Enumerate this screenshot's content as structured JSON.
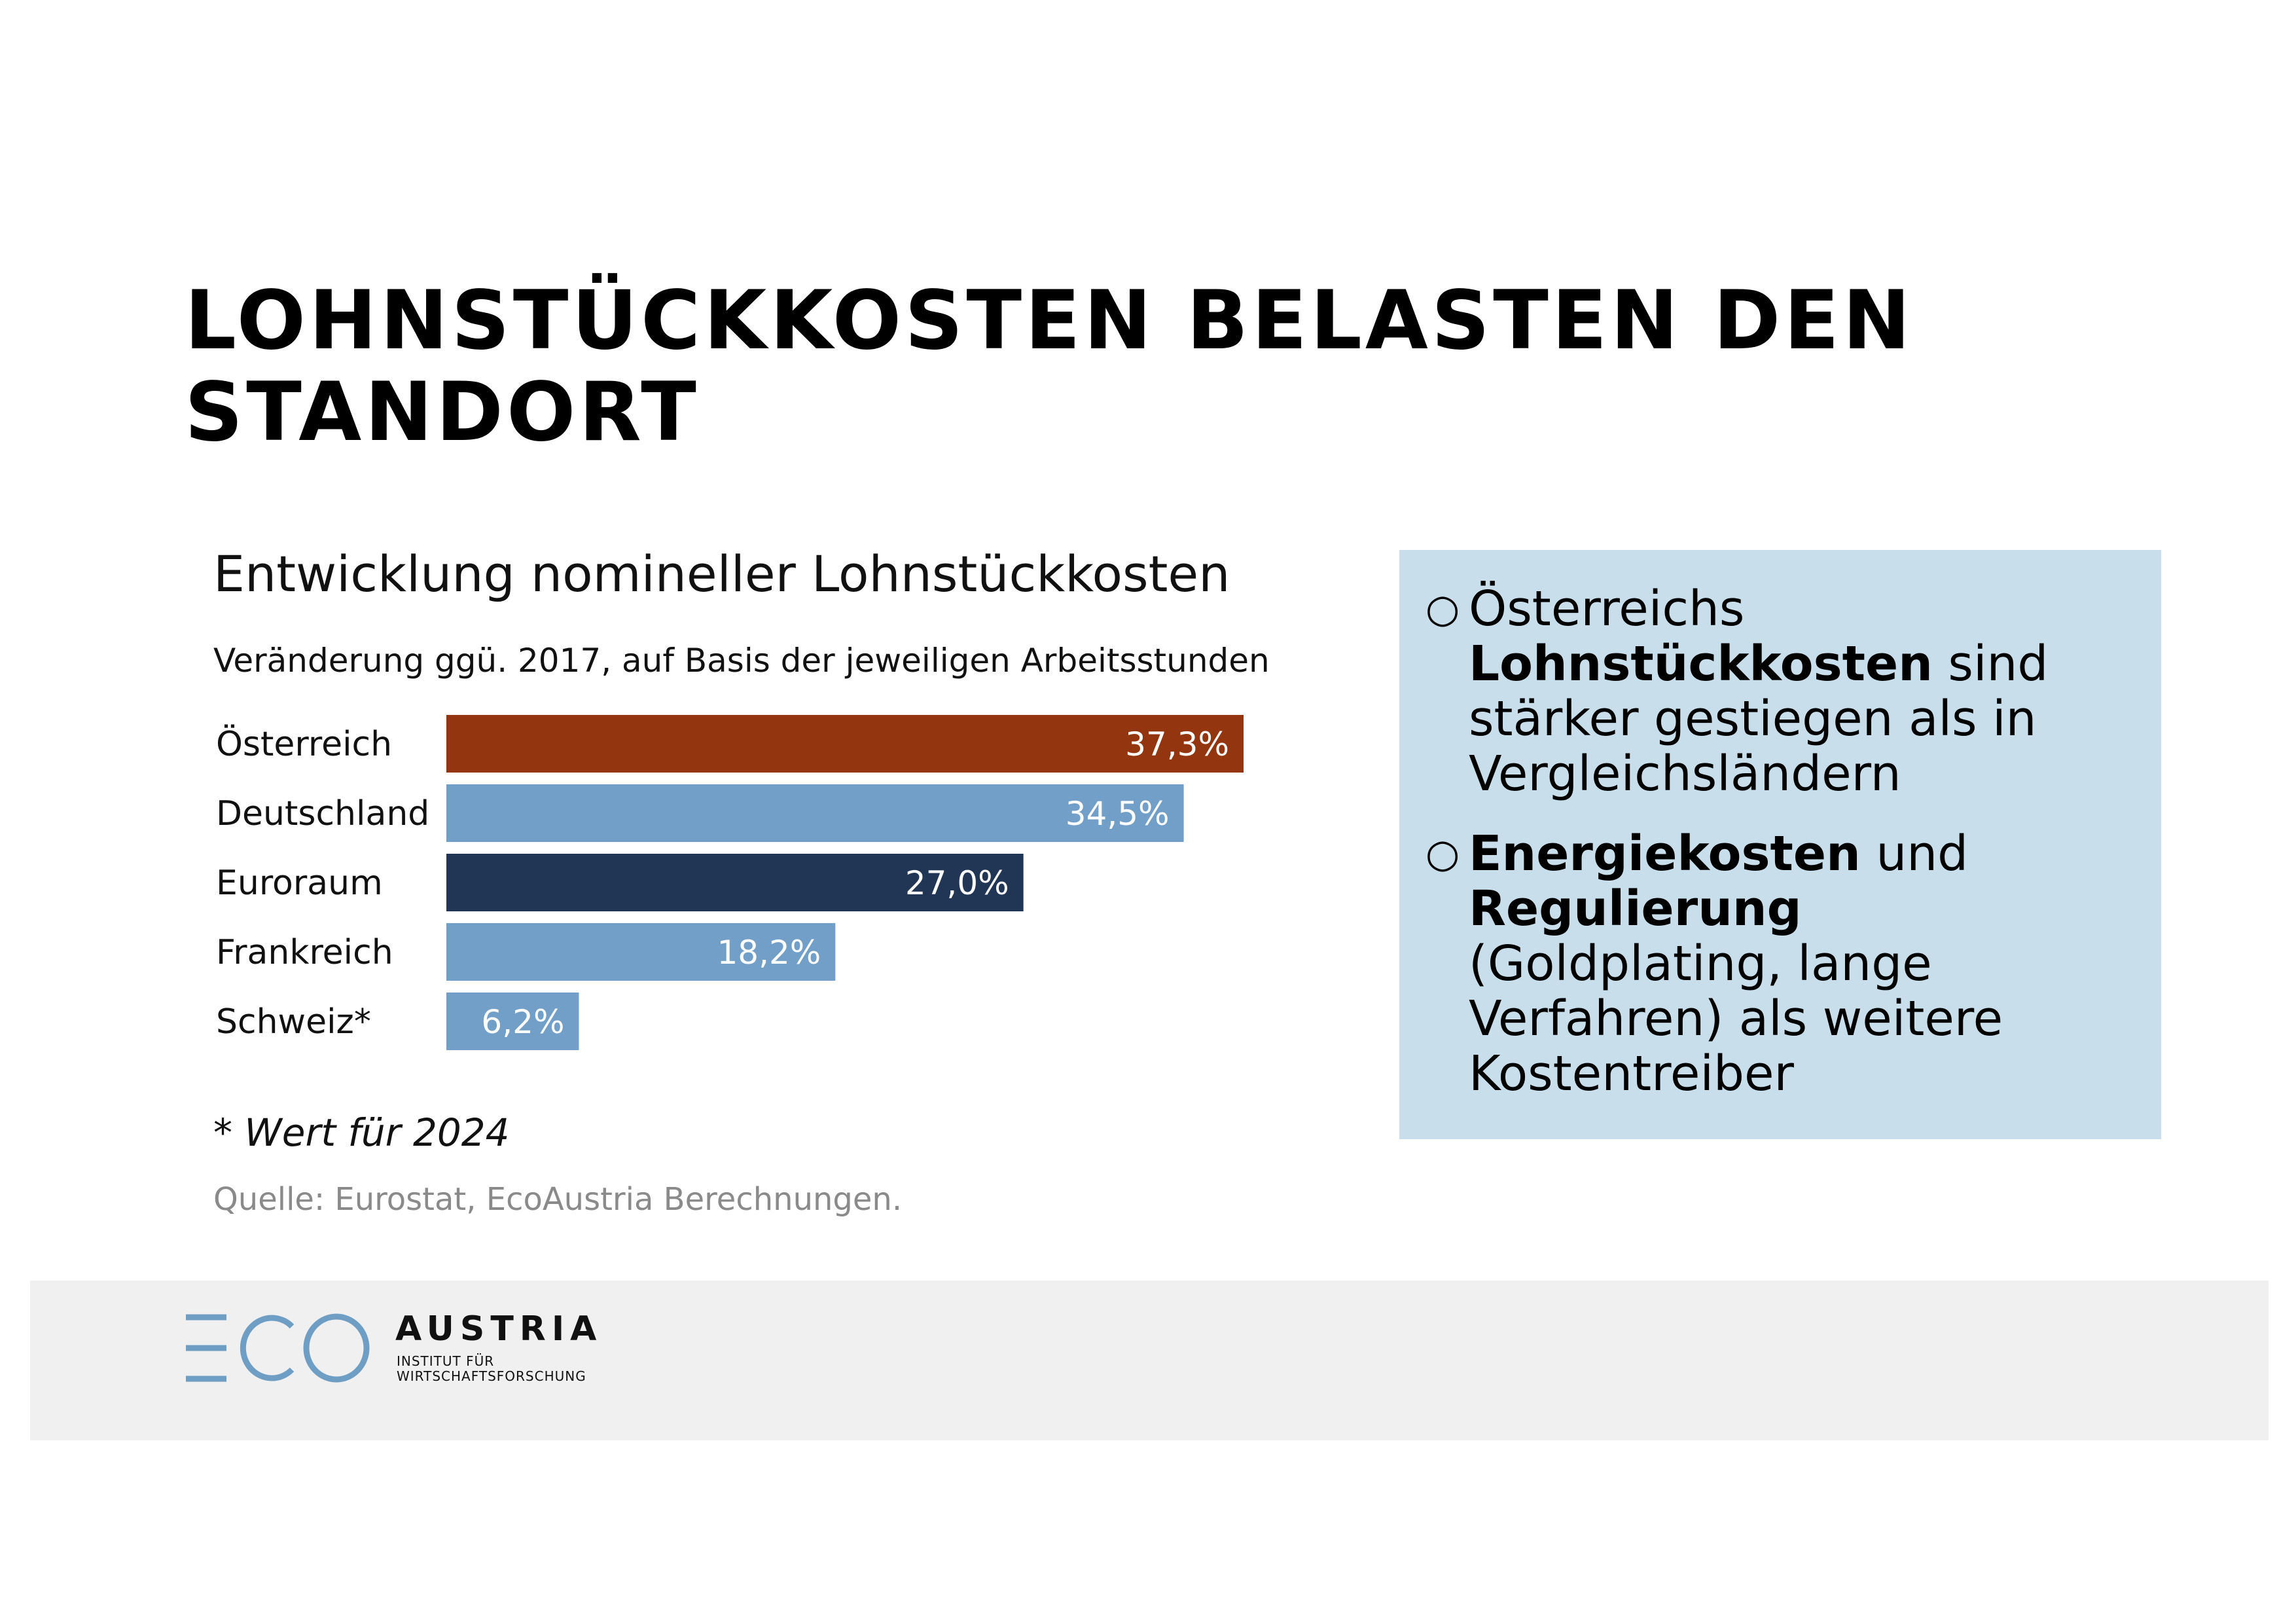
{
  "slide": {
    "title": "LOHNSTÜCKKOSTEN BELASTEN DEN STANDORT"
  },
  "chart_data": {
    "type": "bar",
    "orientation": "horizontal",
    "title": "Entwicklung nomineller Lohnstückkosten",
    "subtitle": "Veränderung ggü. 2017, auf Basis der jeweiligen Arbeitsstunden",
    "categories": [
      "Österreich",
      "Deutschland",
      "Euroraum",
      "Frankreich",
      "Schweiz*"
    ],
    "values": [
      37.3,
      34.5,
      27.0,
      18.2,
      6.2
    ],
    "labels": [
      "37,3%",
      "34,5%",
      "27,0%",
      "18,2%",
      "6,2%"
    ],
    "colors": [
      "#933610",
      "#729fc8",
      "#213554",
      "#729fc8",
      "#729fc8"
    ],
    "label_color": "#ffffff",
    "xlim": [
      0,
      37.3
    ],
    "grid": false,
    "legend": "none",
    "footnote": "* Wert für 2024",
    "source": "Quelle: Eurostat, EcoAustria Berechnungen."
  },
  "info_box": {
    "background": "#c8deeb",
    "bullet_marker": "○",
    "bullets": [
      {
        "lead": "Österreichs ",
        "bold1": "Lohnstückkosten",
        "mid": " sind stärker gestiegen als in Vergleichsländern",
        "bold2": "",
        "tail": ""
      },
      {
        "lead": "",
        "bold1": "Energiekosten",
        "mid": " und ",
        "bold2": "Regulierung",
        "tail": " (Goldplating, lange Verfahren) als weitere Kostentreiber"
      }
    ]
  },
  "footer": {
    "background": "#f0f0f0",
    "logo_mark": "ECO",
    "logo_mark_color": "#6f9ec5",
    "logo_name": "AUSTRIA",
    "logo_sub_line1": "INSTITUT FÜR",
    "logo_sub_line2": "WIRTSCHAFTSFORSCHUNG"
  }
}
